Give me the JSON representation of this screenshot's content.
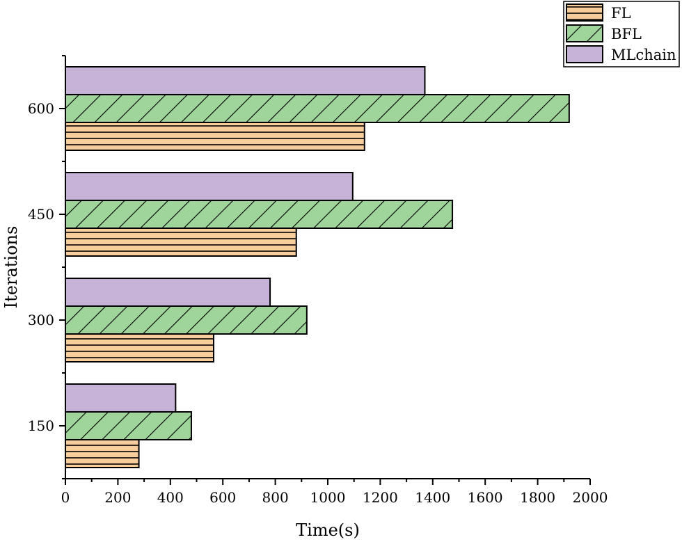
{
  "chart_data": {
    "type": "bar",
    "orientation": "horizontal",
    "title": "",
    "xlabel": "Time(s)",
    "ylabel": "Iterations",
    "categories": [
      "150",
      "300",
      "450",
      "600"
    ],
    "xlim": [
      0,
      2000
    ],
    "xticks": [
      "0",
      "200",
      "400",
      "600",
      "800",
      "1000",
      "1200",
      "1400",
      "1600",
      "1800",
      "2000"
    ],
    "series": [
      {
        "name": "FL",
        "values": [
          280,
          565,
          880,
          1140
        ],
        "color": "#f8cd9c",
        "pattern": "horizontal-lines"
      },
      {
        "name": "BFL",
        "values": [
          480,
          920,
          1475,
          1920
        ],
        "color": "#9fd59b",
        "pattern": "diagonal-lines"
      },
      {
        "name": "MLchain",
        "values": [
          420,
          780,
          1095,
          1370
        ],
        "color": "#c6b3d7",
        "pattern": "solid"
      }
    ],
    "legend": {
      "position": "top-right"
    },
    "grid": false
  }
}
